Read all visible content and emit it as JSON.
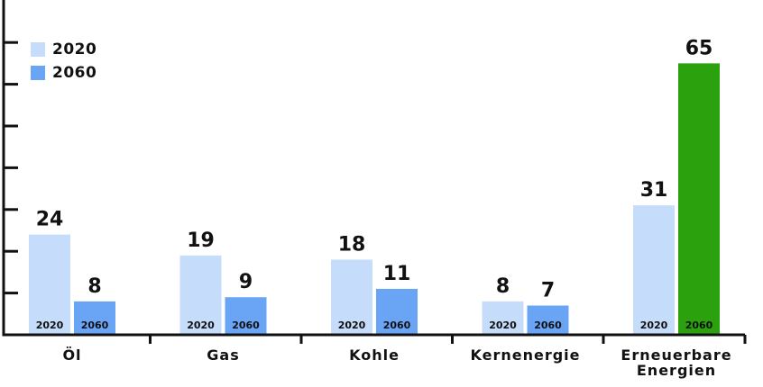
{
  "chart_data": {
    "type": "bar",
    "categories": [
      "Öl",
      "Gas",
      "Kohle",
      "Kernenergie",
      "Erneuerbare Energien"
    ],
    "category_lines": [
      [
        "Öl"
      ],
      [
        "Gas"
      ],
      [
        "Kohle"
      ],
      [
        "Kernenergie"
      ],
      [
        "Erneuerbare",
        "Energien"
      ]
    ],
    "series": [
      {
        "name": "2020",
        "values": [
          24,
          19,
          18,
          8,
          31
        ]
      },
      {
        "name": "2060",
        "values": [
          8,
          9,
          11,
          7,
          65
        ]
      }
    ],
    "ylim": [
      0,
      75
    ],
    "y_tick_step": 10,
    "legend": {
      "items": [
        "2020",
        "2060"
      ],
      "position": "top-left"
    },
    "colors": {
      "2020": "#c5dcfa",
      "2060": "#6aa4f5",
      "highlight": "#2ba10e",
      "axis": "#111111"
    },
    "highlight": {
      "series": "2060",
      "category": "Erneuerbare Energien"
    }
  }
}
